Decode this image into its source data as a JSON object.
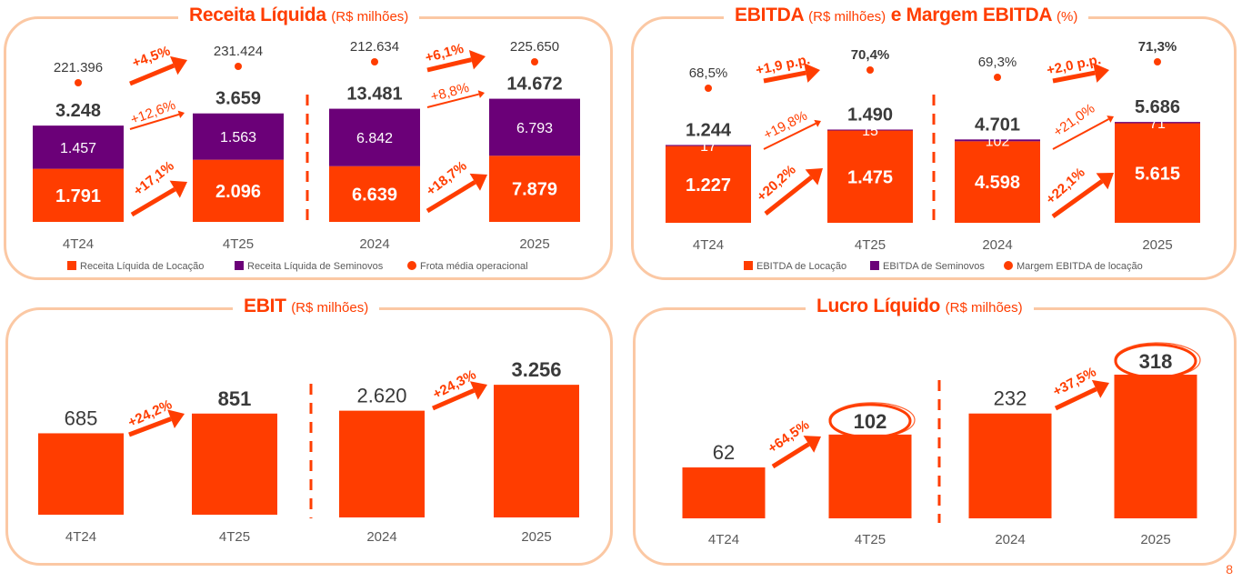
{
  "colors": {
    "orange": "#ff3d00",
    "purple": "#6b0078",
    "panel_border": "#fbc8a4",
    "text_dark": "#3a3a3a",
    "text_gray": "#5a5a5a"
  },
  "page_number": "8",
  "chart_data": [
    {
      "id": "receita",
      "type": "bar",
      "stacked": true,
      "title": "Receita Líquida",
      "unit": "(R$ milhões)",
      "categories": [
        "4T24",
        "4T25",
        "2024",
        "2025"
      ],
      "series": [
        {
          "name": "Receita Líquida de Locação",
          "color": "#ff3d00",
          "values": [
            1791,
            2096,
            6639,
            7879
          ],
          "labels": [
            "1.791",
            "2.096",
            "6.639",
            "7.879"
          ]
        },
        {
          "name": "Receita Líquida de Seminovos",
          "color": "#6b0078",
          "values": [
            1457,
            1563,
            6842,
            6793
          ],
          "labels": [
            "1.457",
            "1.563",
            "6.842",
            "6.793"
          ]
        }
      ],
      "totals": [
        "3.248",
        "3.659",
        "13.481",
        "14.672"
      ],
      "dots": {
        "name": "Frota média operacional",
        "values": [
          221396,
          231424,
          212634,
          225650
        ],
        "labels": [
          "221.396",
          "231.424",
          "212.634",
          "225.650"
        ]
      },
      "growth": [
        {
          "from": 0,
          "to": 1,
          "dots": "+4,5%",
          "total": "+12,6%",
          "base": "+17,1%"
        },
        {
          "from": 2,
          "to": 3,
          "dots": "+6,1%",
          "total": "+8,8%",
          "base": "+18,7%"
        }
      ],
      "legend": [
        "Receita Líquida de Locação",
        "Receita Líquida de Seminovos",
        "Frota média operacional"
      ]
    },
    {
      "id": "ebitda",
      "type": "bar",
      "stacked": true,
      "title": "EBITDA",
      "unit": "(R$ milhões)",
      "title2": "e Margem EBITDA",
      "unit2": "(%)",
      "categories": [
        "4T24",
        "4T25",
        "2024",
        "2025"
      ],
      "series": [
        {
          "name": "EBITDA de Locação",
          "color": "#ff3d00",
          "values": [
            1227,
            1475,
            4598,
            5615
          ],
          "labels": [
            "1.227",
            "1.475",
            "4.598",
            "5.615"
          ]
        },
        {
          "name": "EBITDA de Seminovos",
          "color": "#6b0078",
          "values": [
            17,
            15,
            102,
            71
          ],
          "labels": [
            "17",
            "15",
            "102",
            "71"
          ]
        }
      ],
      "totals": [
        "1.244",
        "1.490",
        "4.701",
        "5.686"
      ],
      "dots": {
        "name": "Margem EBITDA de locação",
        "values": [
          68.5,
          70.4,
          69.3,
          71.3
        ],
        "labels": [
          "68,5%",
          "70,4%",
          "69,3%",
          "71,3%"
        ]
      },
      "growth": [
        {
          "from": 0,
          "to": 1,
          "dots": "+1,9 p.p.",
          "total": "+19,8%",
          "base": "+20,2%"
        },
        {
          "from": 2,
          "to": 3,
          "dots": "+2,0 p.p.",
          "total": "+21,0%",
          "base": "+22,1%"
        }
      ],
      "legend": [
        "EBITDA de Locação",
        "EBITDA de Seminovos",
        "Margem EBITDA de locação"
      ]
    },
    {
      "id": "ebit",
      "type": "bar",
      "title": "EBIT",
      "unit": "(R$ milhões)",
      "categories": [
        "4T24",
        "4T25",
        "2024",
        "2025"
      ],
      "values": [
        685,
        851,
        2620,
        3256
      ],
      "labels": [
        "685",
        "851",
        "2.620",
        "3.256"
      ],
      "growth": [
        {
          "from": 0,
          "to": 1,
          "label": "+24,2%"
        },
        {
          "from": 2,
          "to": 3,
          "label": "+24,3%"
        }
      ]
    },
    {
      "id": "lucro",
      "type": "bar",
      "title": "Lucro Líquido",
      "unit": "(R$ milhões)",
      "categories": [
        "4T24",
        "4T25",
        "2024",
        "2025"
      ],
      "values": [
        62,
        102,
        232,
        318
      ],
      "labels": [
        "62",
        "102",
        "232",
        "318"
      ],
      "highlighted": [
        1,
        3
      ],
      "growth": [
        {
          "from": 0,
          "to": 1,
          "label": "+64,5%"
        },
        {
          "from": 2,
          "to": 3,
          "label": "+37,5%"
        }
      ]
    }
  ]
}
